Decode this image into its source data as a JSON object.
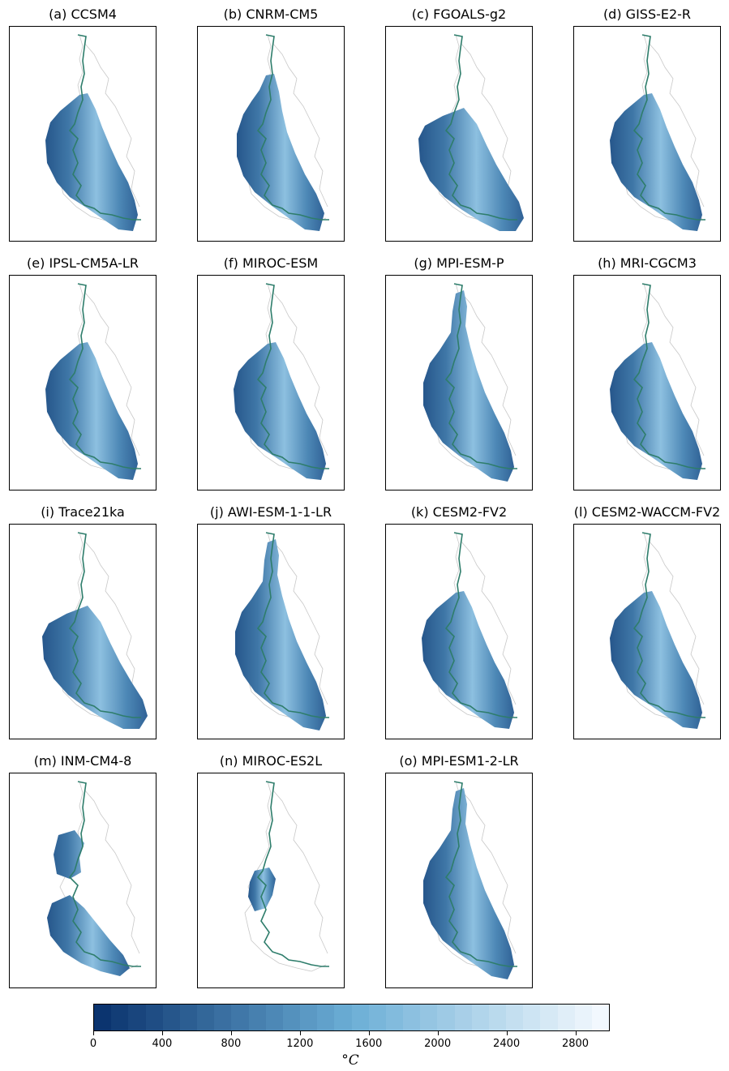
{
  "panels": [
    {
      "title": "(a) CCSM4",
      "variant": "standard"
    },
    {
      "title": "(b) CNRM-CM5",
      "variant": "narrow"
    },
    {
      "title": "(c) FGOALS-g2",
      "variant": "wide-south"
    },
    {
      "title": "(d) GISS-E2-R",
      "variant": "standard"
    },
    {
      "title": "(e) IPSL-CM5A-LR",
      "variant": "standard"
    },
    {
      "title": "(f) MIROC-ESM",
      "variant": "standard"
    },
    {
      "title": "(g) MPI-ESM-P",
      "variant": "full-north"
    },
    {
      "title": "(h) MRI-CGCM3",
      "variant": "standard"
    },
    {
      "title": "(i) Trace21ka",
      "variant": "wide-south"
    },
    {
      "title": "(j) AWI-ESM-1-1-LR",
      "variant": "full-north"
    },
    {
      "title": "(k) CESM2-FV2",
      "variant": "standard"
    },
    {
      "title": "(l) CESM2-WACCM-FV2",
      "variant": "standard"
    },
    {
      "title": "(m) INM-CM4-8",
      "variant": "split"
    },
    {
      "title": "(n) MIROC-ES2L",
      "variant": "patch"
    },
    {
      "title": "(o) MPI-ESM1-2-LR",
      "variant": "full-north"
    }
  ],
  "colorbar": {
    "min": 0,
    "max": 3000,
    "step": 100,
    "ticks": [
      "0",
      "400",
      "800",
      "1200",
      "1600",
      "2000",
      "2400",
      "2800"
    ],
    "unit": "°C",
    "colormap": "Blues_r",
    "color_low": "#08306b",
    "color_mid": "#6baed6",
    "color_high": "#f7fbff"
  },
  "colors": {
    "outline": "#2e7d6b",
    "coastline": "#c8c8c8"
  }
}
